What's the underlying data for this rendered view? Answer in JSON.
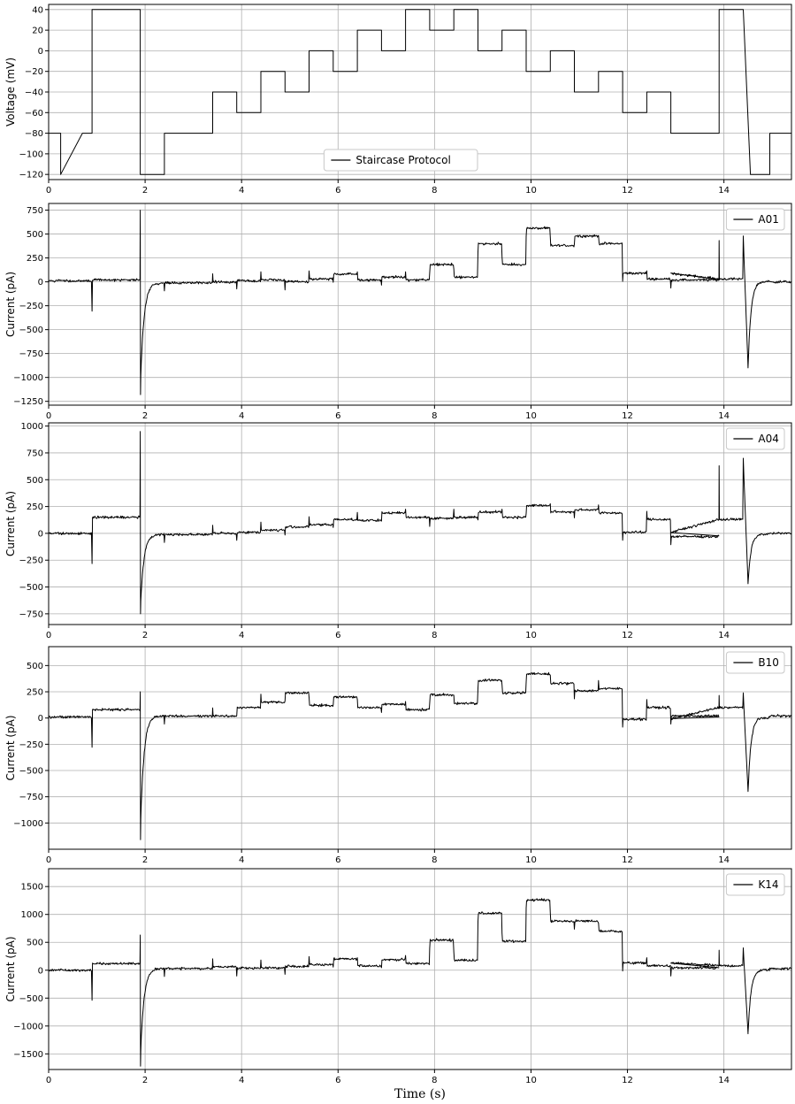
{
  "chart_data": [
    {
      "type": "line",
      "ylabel": "Voltage (mV)",
      "xlabel": "",
      "xlim": [
        0,
        15.4
      ],
      "ylim": [
        -125,
        45
      ],
      "x_ticks": [
        0,
        2,
        4,
        6,
        8,
        10,
        12,
        14
      ],
      "y_ticks": [
        40,
        20,
        0,
        -20,
        -40,
        -60,
        -80,
        -100,
        -120
      ],
      "grid": true,
      "legend": "bottom-center",
      "series": [
        {
          "name": "Staircase Protocol",
          "x": [
            0,
            0.25,
            0.25,
            0.7,
            0.9,
            0.9,
            1.9,
            1.9,
            2.4,
            2.4,
            3.4,
            3.4,
            3.9,
            3.9,
            4.4,
            4.4,
            4.9,
            4.9,
            5.4,
            5.4,
            5.9,
            5.9,
            6.4,
            6.4,
            6.9,
            6.9,
            7.4,
            7.4,
            7.9,
            7.9,
            8.4,
            8.4,
            8.9,
            8.9,
            9.4,
            9.4,
            9.9,
            9.9,
            10.4,
            10.4,
            10.9,
            10.9,
            11.4,
            11.4,
            11.9,
            11.9,
            12.4,
            12.4,
            12.9,
            12.9,
            13.9,
            13.9,
            14.4,
            14.55,
            14.55,
            14.95,
            14.95,
            15.4
          ],
          "y": [
            -80,
            -80,
            -120,
            -80,
            -80,
            40,
            40,
            -120,
            -120,
            -80,
            -80,
            -40,
            -40,
            -60,
            -60,
            -20,
            -20,
            -40,
            -40,
            0,
            0,
            -20,
            -20,
            20,
            20,
            0,
            0,
            40,
            40,
            20,
            20,
            40,
            40,
            0,
            0,
            20,
            20,
            -20,
            -20,
            0,
            0,
            -40,
            -40,
            -20,
            -20,
            -60,
            -60,
            -40,
            -40,
            -80,
            -80,
            40,
            40,
            -120,
            -120,
            -120,
            -80,
            -80
          ]
        }
      ]
    },
    {
      "type": "line",
      "ylabel": "Current (pA)",
      "xlabel": "",
      "xlim": [
        0,
        15.4
      ],
      "ylim": [
        -1290,
        820
      ],
      "x_ticks": [
        0,
        2,
        4,
        6,
        8,
        10,
        12,
        14
      ],
      "y_ticks": [
        750,
        500,
        250,
        0,
        -250,
        -500,
        -750,
        -1000,
        -1250
      ],
      "grid": true,
      "legend": "top-right",
      "series": [
        {
          "name": "A01",
          "levels": [
            10,
            20,
            -10,
            0,
            10,
            20,
            0,
            30,
            80,
            20,
            50,
            20,
            180,
            50,
            400,
            180,
            560,
            380,
            480,
            400,
            90,
            30,
            20,
            0
          ],
          "peak_min": -1180,
          "peak_max": 750,
          "tail_min": -900,
          "tail_max": 480
        }
      ]
    },
    {
      "type": "line",
      "ylabel": "Current (pA)",
      "xlabel": "",
      "xlim": [
        0,
        15.4
      ],
      "ylim": [
        -850,
        1030
      ],
      "x_ticks": [
        0,
        2,
        4,
        6,
        8,
        10,
        12,
        14
      ],
      "y_ticks": [
        1000,
        750,
        500,
        250,
        0,
        -250,
        -500,
        -750
      ],
      "grid": true,
      "legend": "top-right",
      "series": [
        {
          "name": "A04",
          "levels": [
            0,
            150,
            -10,
            0,
            10,
            30,
            60,
            80,
            130,
            120,
            190,
            150,
            140,
            150,
            200,
            150,
            260,
            200,
            220,
            190,
            10,
            130,
            -30,
            0
          ],
          "peak_min": -750,
          "peak_max": 950,
          "tail_min": -470,
          "tail_max": 700
        }
      ]
    },
    {
      "type": "line",
      "ylabel": "Current (pA)",
      "xlabel": "",
      "xlim": [
        0,
        15.4
      ],
      "ylim": [
        -1250,
        680
      ],
      "x_ticks": [
        0,
        2,
        4,
        6,
        8,
        10,
        12,
        14
      ],
      "y_ticks": [
        500,
        250,
        0,
        -250,
        -500,
        -750,
        -1000
      ],
      "grid": true,
      "legend": "top-right",
      "series": [
        {
          "name": "B10",
          "levels": [
            10,
            80,
            20,
            20,
            100,
            150,
            240,
            120,
            200,
            100,
            130,
            80,
            220,
            140,
            360,
            240,
            420,
            330,
            260,
            280,
            -10,
            100,
            20,
            20
          ],
          "peak_min": -1160,
          "peak_max": 250,
          "tail_min": -700,
          "tail_max": 240
        }
      ]
    },
    {
      "type": "line",
      "ylabel": "Current (pA)",
      "xlabel": "Time (s)",
      "xlim": [
        0,
        15.4
      ],
      "ylim": [
        -1780,
        1820
      ],
      "x_ticks": [
        0,
        2,
        4,
        6,
        8,
        10,
        12,
        14
      ],
      "y_ticks": [
        1500,
        1000,
        500,
        0,
        -500,
        -1000,
        -1500
      ],
      "grid": true,
      "legend": "top-right",
      "series": [
        {
          "name": "K14",
          "levels": [
            0,
            120,
            30,
            60,
            40,
            40,
            70,
            100,
            200,
            80,
            190,
            120,
            540,
            180,
            1020,
            520,
            1260,
            880,
            880,
            700,
            130,
            80,
            40,
            30
          ],
          "peak_min": -1720,
          "peak_max": 630,
          "tail_min": -1140,
          "tail_max": 400
        }
      ]
    }
  ]
}
